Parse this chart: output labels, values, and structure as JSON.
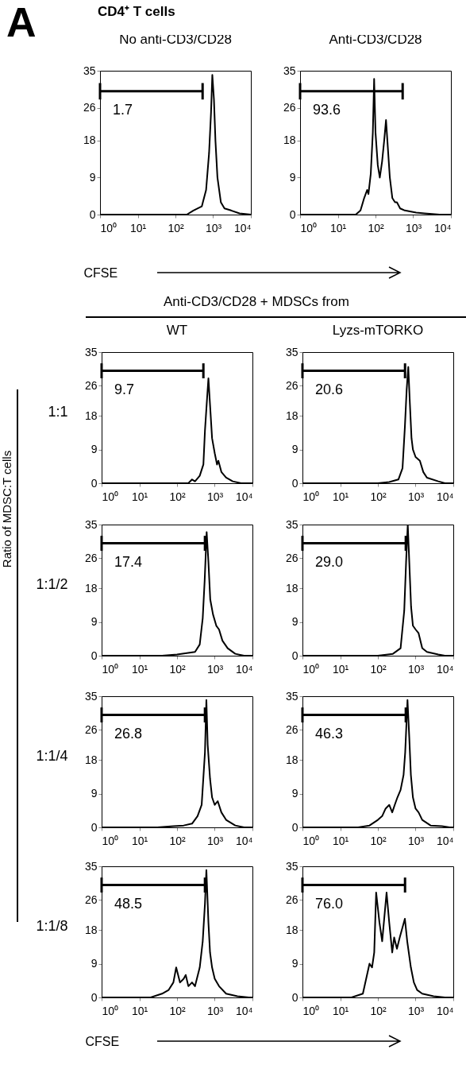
{
  "chart_data": [
    {
      "type": "line",
      "title": "No anti-CD3/CD28",
      "xlabel": "CFSE",
      "log": "x",
      "xlim": [
        1,
        10000
      ],
      "xticks": [
        {
          "value": 1,
          "label": "10⁰"
        },
        {
          "value": 10,
          "label": "10¹"
        },
        {
          "value": 100,
          "label": "10²"
        },
        {
          "value": 1000,
          "label": "10³"
        },
        {
          "value": 10000,
          "label": "10⁴"
        }
      ],
      "ylim": [
        0,
        35
      ],
      "yticks": [
        0,
        9,
        18,
        26,
        35
      ],
      "series": [
        {
          "color": "#000000",
          "x": [
            1,
            200,
            300,
            500,
            650,
            780,
            880,
            950,
            1050,
            1150,
            1300,
            1600,
            2000,
            3000,
            5000,
            10000
          ],
          "values": [
            0,
            0,
            1,
            2,
            6,
            15,
            25,
            34,
            28,
            18,
            9,
            3,
            1.5,
            1,
            0.3,
            0
          ]
        },
        {
          "color": "#000000",
          "x": [
            1,
            525
          ],
          "values": [
            30,
            30
          ],
          "errors": [
            2,
            2
          ]
        }
      ],
      "annotations": [
        "A",
        "CD4⁺ T cells",
        "1.7"
      ]
    },
    {
      "type": "line",
      "title": "Anti-CD3/CD28",
      "log": "x",
      "xlim": [
        1,
        10000
      ],
      "xticks": [
        {
          "value": 1,
          "label": "10⁰"
        },
        {
          "value": 10,
          "label": "10¹"
        },
        {
          "value": 100,
          "label": "10²"
        },
        {
          "value": 1000,
          "label": "10³"
        },
        {
          "value": 10000,
          "label": "10⁴"
        }
      ],
      "ylim": [
        0,
        35
      ],
      "yticks": [
        0,
        9,
        18,
        26,
        35
      ],
      "series": [
        {
          "color": "#000000",
          "x": [
            1,
            30,
            40,
            50,
            60,
            65,
            75,
            85,
            92,
            100,
            115,
            130,
            150,
            170,
            190,
            210,
            240,
            280,
            330,
            370,
            450,
            600,
            1200,
            2000,
            5000,
            10000
          ],
          "values": [
            0,
            0,
            1,
            4,
            6,
            5,
            10,
            20,
            33,
            20,
            12,
            9,
            13,
            18,
            23,
            17,
            9,
            4,
            3,
            3,
            1.5,
            1,
            0.5,
            0.3,
            0,
            0
          ]
        },
        {
          "color": "#000000",
          "x": [
            1,
            525
          ],
          "values": [
            30,
            30
          ],
          "errors": [
            2,
            2
          ]
        }
      ],
      "annotations": [
        "93.6"
      ]
    },
    {
      "type": "line",
      "title": "WT",
      "ylabel": "1:1",
      "log": "x",
      "xlim": [
        1,
        10000
      ],
      "xticks": [
        {
          "value": 1,
          "label": "10⁰"
        },
        {
          "value": 10,
          "label": "10¹"
        },
        {
          "value": 100,
          "label": "10²"
        },
        {
          "value": 1000,
          "label": "10³"
        },
        {
          "value": 10000,
          "label": "10⁴"
        }
      ],
      "ylim": [
        0,
        35
      ],
      "yticks": [
        0,
        9,
        18,
        26,
        35
      ],
      "series": [
        {
          "color": "#000000",
          "x": [
            1,
            200,
            250,
            300,
            400,
            500,
            550,
            620,
            680,
            760,
            850,
            1000,
            1150,
            1250,
            1500,
            2000,
            3000,
            5000,
            10000
          ],
          "values": [
            0,
            0,
            1,
            0.5,
            2,
            5,
            14,
            22,
            28,
            20,
            12,
            8,
            5,
            6,
            3,
            1.5,
            0.5,
            0,
            0
          ]
        },
        {
          "color": "#000000",
          "x": [
            1,
            500
          ],
          "values": [
            30,
            30
          ],
          "errors": [
            2,
            2
          ]
        }
      ],
      "annotations": [
        "Anti-CD3/CD28 + MDSCs from",
        "Ratio of MDSC:T cells",
        "9.7"
      ]
    },
    {
      "type": "line",
      "title": "Lyzs-mTORKO",
      "log": "x",
      "xlim": [
        1,
        10000
      ],
      "xticks": [
        {
          "value": 1,
          "label": "10⁰"
        },
        {
          "value": 10,
          "label": "10¹"
        },
        {
          "value": 100,
          "label": "10²"
        },
        {
          "value": 1000,
          "label": "10³"
        },
        {
          "value": 10000,
          "label": "10⁴"
        }
      ],
      "ylim": [
        0,
        35
      ],
      "yticks": [
        0,
        9,
        18,
        26,
        35
      ],
      "series": [
        {
          "color": "#000000",
          "x": [
            1,
            100,
            200,
            350,
            450,
            520,
            580,
            640,
            700,
            780,
            850,
            1000,
            1300,
            1600,
            2000,
            4000,
            6000,
            10000
          ],
          "values": [
            0,
            0,
            0.3,
            1,
            4,
            15,
            25,
            31,
            22,
            12,
            9,
            7,
            6,
            3,
            1.5,
            0.5,
            0,
            0
          ]
        },
        {
          "color": "#000000",
          "x": [
            1,
            525
          ],
          "values": [
            30,
            30
          ],
          "errors": [
            2,
            2
          ]
        }
      ],
      "annotations": [
        "20.6"
      ]
    },
    {
      "type": "line",
      "ylabel": "1:1/2",
      "log": "x",
      "xlim": [
        1,
        10000
      ],
      "xticks": [
        {
          "value": 1,
          "label": "10⁰"
        },
        {
          "value": 10,
          "label": "10¹"
        },
        {
          "value": 100,
          "label": "10²"
        },
        {
          "value": 1000,
          "label": "10³"
        },
        {
          "value": 10000,
          "label": "10⁴"
        }
      ],
      "ylim": [
        0,
        35
      ],
      "yticks": [
        0,
        9,
        18,
        26,
        35
      ],
      "series": [
        {
          "color": "#000000",
          "x": [
            1,
            40,
            100,
            300,
            400,
            480,
            540,
            610,
            680,
            760,
            900,
            1100,
            1300,
            1600,
            2200,
            3500,
            6000,
            10000
          ],
          "values": [
            0,
            0,
            0.3,
            1,
            3,
            10,
            20,
            33,
            25,
            15,
            11,
            8,
            7,
            4,
            2,
            0.5,
            0,
            0
          ]
        },
        {
          "color": "#000000",
          "x": [
            1,
            550
          ],
          "values": [
            30,
            30
          ],
          "errors": [
            2,
            2
          ]
        }
      ],
      "annotations": [
        "17.4"
      ]
    },
    {
      "type": "line",
      "log": "x",
      "xlim": [
        1,
        10000
      ],
      "xticks": [
        {
          "value": 1,
          "label": "10⁰"
        },
        {
          "value": 10,
          "label": "10¹"
        },
        {
          "value": 100,
          "label": "10²"
        },
        {
          "value": 1000,
          "label": "10³"
        },
        {
          "value": 10000,
          "label": "10⁴"
        }
      ],
      "ylim": [
        0,
        35
      ],
      "yticks": [
        0,
        9,
        18,
        26,
        35
      ],
      "series": [
        {
          "color": "#000000",
          "x": [
            1,
            100,
            250,
            400,
            500,
            560,
            620,
            680,
            760,
            850,
            1000,
            1200,
            1500,
            2000,
            4000,
            6000,
            10000
          ],
          "values": [
            0,
            0,
            0.5,
            2,
            12,
            25,
            35,
            25,
            13,
            8,
            7,
            6,
            2,
            1,
            0.3,
            0,
            0
          ]
        },
        {
          "color": "#000000",
          "x": [
            1,
            550
          ],
          "values": [
            30,
            30
          ],
          "errors": [
            2,
            2
          ]
        }
      ],
      "annotations": [
        "29.0"
      ]
    },
    {
      "type": "line",
      "ylabel": "1:1/4",
      "log": "x",
      "xlim": [
        1,
        10000
      ],
      "xticks": [
        {
          "value": 1,
          "label": "10⁰"
        },
        {
          "value": 10,
          "label": "10¹"
        },
        {
          "value": 100,
          "label": "10²"
        },
        {
          "value": 1000,
          "label": "10³"
        },
        {
          "value": 10000,
          "label": "10⁴"
        }
      ],
      "ylim": [
        0,
        35
      ],
      "yticks": [
        0,
        9,
        18,
        26,
        35
      ],
      "series": [
        {
          "color": "#000000",
          "x": [
            1,
            30,
            80,
            150,
            250,
            350,
            450,
            550,
            600,
            650,
            750,
            850,
            1000,
            1200,
            1500,
            2000,
            3500,
            6000,
            10000
          ],
          "values": [
            0,
            0,
            0.3,
            0.5,
            1,
            3,
            6,
            20,
            34,
            22,
            13,
            8,
            6,
            7,
            4,
            2,
            0.5,
            0,
            0
          ]
        },
        {
          "color": "#000000",
          "x": [
            1,
            550
          ],
          "values": [
            30,
            30
          ],
          "errors": [
            2,
            2
          ]
        }
      ],
      "annotations": [
        "26.8"
      ]
    },
    {
      "type": "line",
      "log": "x",
      "xlim": [
        1,
        10000
      ],
      "xticks": [
        {
          "value": 1,
          "label": "10⁰"
        },
        {
          "value": 10,
          "label": "10¹"
        },
        {
          "value": 100,
          "label": "10²"
        },
        {
          "value": 1000,
          "label": "10³"
        },
        {
          "value": 10000,
          "label": "10⁴"
        }
      ],
      "ylim": [
        0,
        35
      ],
      "yticks": [
        0,
        9,
        18,
        26,
        35
      ],
      "series": [
        {
          "color": "#000000",
          "x": [
            1,
            30,
            60,
            100,
            130,
            160,
            200,
            240,
            280,
            330,
            400,
            480,
            530,
            610,
            680,
            750,
            850,
            1000,
            1200,
            1500,
            2500,
            5000,
            8000,
            10000
          ],
          "values": [
            0,
            0,
            0.5,
            2,
            3,
            5,
            6,
            4,
            6,
            8,
            10,
            14,
            20,
            34,
            24,
            14,
            8,
            5,
            4,
            2,
            0.5,
            0.3,
            0,
            0
          ]
        },
        {
          "color": "#000000",
          "x": [
            1,
            550
          ],
          "values": [
            30,
            30
          ],
          "errors": [
            2,
            2
          ]
        }
      ],
      "annotations": [
        "46.3"
      ]
    },
    {
      "type": "line",
      "ylabel": "1:1/8",
      "xlabel": "CFSE",
      "log": "x",
      "xlim": [
        1,
        10000
      ],
      "xticks": [
        {
          "value": 1,
          "label": "10⁰"
        },
        {
          "value": 10,
          "label": "10¹"
        },
        {
          "value": 100,
          "label": "10²"
        },
        {
          "value": 1000,
          "label": "10³"
        },
        {
          "value": 10000,
          "label": "10⁴"
        }
      ],
      "ylim": [
        0,
        35
      ],
      "yticks": [
        0,
        9,
        18,
        26,
        35
      ],
      "series": [
        {
          "color": "#000000",
          "x": [
            1,
            20,
            40,
            60,
            80,
            95,
            120,
            150,
            170,
            200,
            250,
            300,
            400,
            480,
            550,
            600,
            680,
            750,
            850,
            1000,
            1300,
            2000,
            4000,
            8000,
            10000
          ],
          "values": [
            0,
            0,
            1,
            2,
            4,
            8,
            4,
            5,
            6,
            3,
            4,
            3,
            8,
            15,
            25,
            34,
            20,
            12,
            8,
            5,
            3,
            1,
            0.3,
            0,
            0
          ]
        },
        {
          "color": "#000000",
          "x": [
            1,
            550
          ],
          "values": [
            30,
            30
          ],
          "errors": [
            2,
            2
          ]
        }
      ],
      "annotations": [
        "48.5"
      ]
    },
    {
      "type": "line",
      "log": "x",
      "xlim": [
        1,
        10000
      ],
      "xticks": [
        {
          "value": 1,
          "label": "10⁰"
        },
        {
          "value": 10,
          "label": "10¹"
        },
        {
          "value": 100,
          "label": "10²"
        },
        {
          "value": 1000,
          "label": "10³"
        },
        {
          "value": 10000,
          "label": "10⁴"
        }
      ],
      "ylim": [
        0,
        35
      ],
      "yticks": [
        0,
        9,
        18,
        26,
        35
      ],
      "series": [
        {
          "color": "#000000",
          "x": [
            1,
            20,
            40,
            60,
            70,
            80,
            90,
            110,
            130,
            170,
            200,
            240,
            270,
            320,
            380,
            520,
            600,
            750,
            900,
            1100,
            1500,
            3000,
            6000,
            10000
          ],
          "values": [
            0,
            0,
            1,
            9,
            8,
            12,
            28,
            20,
            15,
            28,
            20,
            12,
            16,
            13,
            16,
            21,
            15,
            8,
            4,
            2,
            1,
            0.3,
            0,
            0
          ]
        },
        {
          "color": "#000000",
          "x": [
            1,
            525
          ],
          "values": [
            30,
            30
          ],
          "errors": [
            2,
            2
          ]
        }
      ],
      "annotations": [
        "76.0"
      ]
    }
  ]
}
